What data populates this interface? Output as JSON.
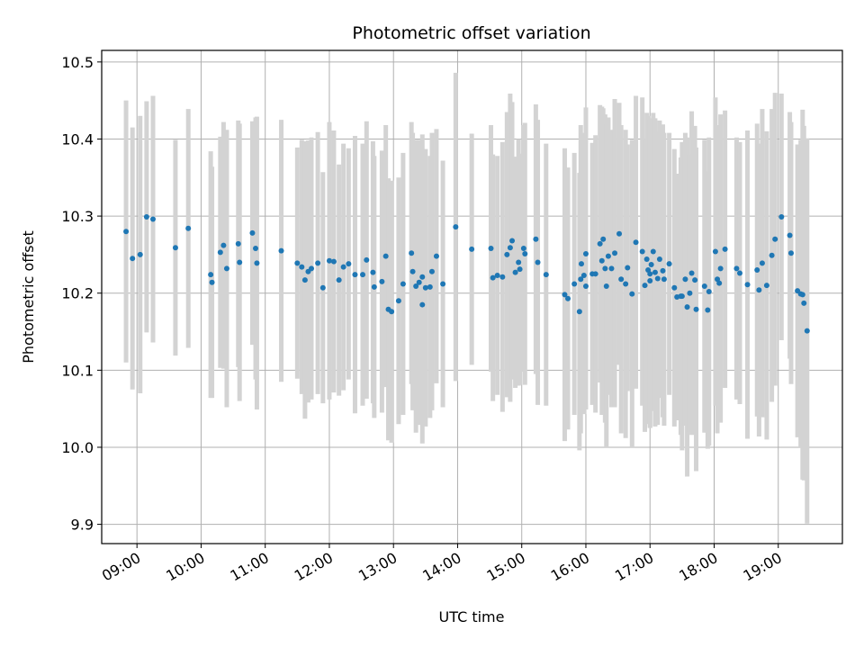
{
  "chart_data": {
    "type": "scatter",
    "title": "Photometric offset variation",
    "xlabel": "UTC time",
    "ylabel": "Photometric offset",
    "x_unit": "UTC hour of day (decimal)",
    "xlim": [
      8.45,
      20.0
    ],
    "ylim": [
      9.875,
      10.515
    ],
    "x_ticks": [
      9,
      10,
      11,
      12,
      13,
      14,
      15,
      16,
      17,
      18,
      19
    ],
    "x_tick_labels": [
      "09:00",
      "10:00",
      "11:00",
      "12:00",
      "13:00",
      "14:00",
      "15:00",
      "16:00",
      "17:00",
      "18:00",
      "19:00"
    ],
    "y_ticks": [
      9.9,
      10.0,
      10.1,
      10.2,
      10.3,
      10.4,
      10.5
    ],
    "y_tick_labels": [
      "9.9",
      "10.0",
      "10.1",
      "10.2",
      "10.3",
      "10.4",
      "10.5"
    ],
    "grid": true,
    "colors": {
      "points": "#1f77b4",
      "error_bars": "#d3d3d3",
      "grid": "#b0b0b0"
    },
    "points": [
      [
        8.83,
        10.28,
        0.17
      ],
      [
        8.93,
        10.245,
        0.17
      ],
      [
        9.05,
        10.25,
        0.18
      ],
      [
        9.15,
        10.299,
        0.15
      ],
      [
        9.25,
        10.296,
        0.16
      ],
      [
        9.6,
        10.259,
        0.14
      ],
      [
        9.8,
        10.284,
        0.155
      ],
      [
        10.15,
        10.224,
        0.16
      ],
      [
        10.17,
        10.214,
        0.15
      ],
      [
        10.3,
        10.253,
        0.15
      ],
      [
        10.35,
        10.262,
        0.16
      ],
      [
        10.4,
        10.232,
        0.18
      ],
      [
        10.58,
        10.264,
        0.16
      ],
      [
        10.6,
        10.24,
        0.18
      ],
      [
        10.8,
        10.278,
        0.145
      ],
      [
        10.85,
        10.258,
        0.17
      ],
      [
        10.87,
        10.239,
        0.19
      ],
      [
        11.25,
        10.255,
        0.17
      ],
      [
        11.5,
        10.239,
        0.15
      ],
      [
        11.57,
        10.234,
        0.165
      ],
      [
        11.62,
        10.217,
        0.18
      ],
      [
        11.67,
        10.228,
        0.17
      ],
      [
        11.72,
        10.232,
        0.17
      ],
      [
        11.82,
        10.239,
        0.17
      ],
      [
        11.9,
        10.207,
        0.15
      ],
      [
        12.0,
        10.242,
        0.18
      ],
      [
        12.07,
        10.241,
        0.17
      ],
      [
        12.15,
        10.217,
        0.15
      ],
      [
        12.22,
        10.234,
        0.16
      ],
      [
        12.3,
        10.238,
        0.15
      ],
      [
        12.4,
        10.224,
        0.18
      ],
      [
        12.52,
        10.224,
        0.17
      ],
      [
        12.58,
        10.243,
        0.18
      ],
      [
        12.68,
        10.227,
        0.17
      ],
      [
        12.7,
        10.208,
        0.17
      ],
      [
        12.82,
        10.215,
        0.17
      ],
      [
        12.88,
        10.248,
        0.17
      ],
      [
        12.92,
        10.179,
        0.17
      ],
      [
        12.97,
        10.176,
        0.17
      ],
      [
        13.08,
        10.19,
        0.16
      ],
      [
        13.15,
        10.212,
        0.17
      ],
      [
        13.28,
        10.252,
        0.17
      ],
      [
        13.3,
        10.228,
        0.18
      ],
      [
        13.35,
        10.209,
        0.19
      ],
      [
        13.4,
        10.214,
        0.185
      ],
      [
        13.45,
        10.185,
        0.18
      ],
      [
        13.45,
        10.221,
        0.185
      ],
      [
        13.5,
        10.207,
        0.18
      ],
      [
        13.57,
        10.208,
        0.17
      ],
      [
        13.6,
        10.228,
        0.18
      ],
      [
        13.67,
        10.248,
        0.165
      ],
      [
        13.77,
        10.212,
        0.16
      ],
      [
        13.97,
        10.286,
        0.2
      ],
      [
        14.22,
        10.257,
        0.15
      ],
      [
        14.52,
        10.258,
        0.16
      ],
      [
        14.55,
        10.22,
        0.16
      ],
      [
        14.62,
        10.223,
        0.155
      ],
      [
        14.7,
        10.221,
        0.175
      ],
      [
        14.77,
        10.25,
        0.185
      ],
      [
        14.82,
        10.259,
        0.2
      ],
      [
        14.85,
        10.268,
        0.18
      ],
      [
        14.9,
        10.227,
        0.15
      ],
      [
        14.95,
        10.24,
        0.16
      ],
      [
        14.97,
        10.231,
        0.15
      ],
      [
        15.03,
        10.258,
        0.16
      ],
      [
        15.05,
        10.251,
        0.17
      ],
      [
        15.22,
        10.27,
        0.175
      ],
      [
        15.25,
        10.24,
        0.185
      ],
      [
        15.38,
        10.224,
        0.17
      ],
      [
        15.67,
        10.198,
        0.19
      ],
      [
        15.72,
        10.193,
        0.17
      ],
      [
        15.82,
        10.212,
        0.17
      ],
      [
        15.9,
        10.176,
        0.18
      ],
      [
        15.92,
        10.218,
        0.2
      ],
      [
        15.93,
        10.238,
        0.17
      ],
      [
        15.97,
        10.223,
        0.18
      ],
      [
        16.0,
        10.251,
        0.19
      ],
      [
        16.0,
        10.209,
        0.16
      ],
      [
        16.1,
        10.225,
        0.17
      ],
      [
        16.15,
        10.225,
        0.18
      ],
      [
        16.22,
        10.264,
        0.18
      ],
      [
        16.25,
        10.242,
        0.2
      ],
      [
        16.27,
        10.27,
        0.17
      ],
      [
        16.3,
        10.232,
        0.2
      ],
      [
        16.32,
        10.209,
        0.21
      ],
      [
        16.35,
        10.248,
        0.18
      ],
      [
        16.4,
        10.232,
        0.18
      ],
      [
        16.45,
        10.252,
        0.2
      ],
      [
        16.52,
        10.277,
        0.17
      ],
      [
        16.55,
        10.218,
        0.2
      ],
      [
        16.62,
        10.212,
        0.2
      ],
      [
        16.65,
        10.233,
        0.16
      ],
      [
        16.72,
        10.199,
        0.2
      ],
      [
        16.78,
        10.266,
        0.19
      ],
      [
        16.88,
        10.254,
        0.2
      ],
      [
        16.92,
        10.21,
        0.19
      ],
      [
        16.95,
        10.244,
        0.19
      ],
      [
        16.97,
        10.23,
        0.2
      ],
      [
        17.0,
        10.225,
        0.2
      ],
      [
        17.0,
        10.216,
        0.19
      ],
      [
        17.02,
        10.237,
        0.19
      ],
      [
        17.05,
        10.254,
        0.18
      ],
      [
        17.08,
        10.227,
        0.2
      ],
      [
        17.12,
        10.219,
        0.19
      ],
      [
        17.15,
        10.244,
        0.18
      ],
      [
        17.2,
        10.229,
        0.19
      ],
      [
        17.22,
        10.218,
        0.19
      ],
      [
        17.3,
        10.238,
        0.17
      ],
      [
        17.38,
        10.207,
        0.18
      ],
      [
        17.42,
        10.195,
        0.16
      ],
      [
        17.48,
        10.196,
        0.18
      ],
      [
        17.5,
        10.196,
        0.2
      ],
      [
        17.55,
        10.218,
        0.19
      ],
      [
        17.58,
        10.182,
        0.22
      ],
      [
        17.62,
        10.2,
        0.18
      ],
      [
        17.65,
        10.226,
        0.21
      ],
      [
        17.7,
        10.217,
        0.2
      ],
      [
        17.72,
        10.179,
        0.21
      ],
      [
        17.85,
        10.209,
        0.19
      ],
      [
        17.9,
        10.178,
        0.18
      ],
      [
        17.92,
        10.202,
        0.2
      ],
      [
        18.02,
        10.254,
        0.2
      ],
      [
        18.05,
        10.218,
        0.2
      ],
      [
        18.08,
        10.213,
        0.18
      ],
      [
        18.1,
        10.232,
        0.2
      ],
      [
        18.17,
        10.257,
        0.18
      ],
      [
        18.35,
        10.232,
        0.17
      ],
      [
        18.4,
        10.226,
        0.17
      ],
      [
        18.52,
        10.211,
        0.2
      ],
      [
        18.67,
        10.23,
        0.19
      ],
      [
        18.7,
        10.204,
        0.19
      ],
      [
        18.75,
        10.239,
        0.2
      ],
      [
        18.82,
        10.21,
        0.2
      ],
      [
        18.9,
        10.249,
        0.19
      ],
      [
        18.95,
        10.27,
        0.19
      ],
      [
        19.05,
        10.299,
        0.16
      ],
      [
        19.18,
        10.275,
        0.16
      ],
      [
        19.2,
        10.252,
        0.17
      ],
      [
        19.3,
        10.203,
        0.19
      ],
      [
        19.35,
        10.199,
        0.2
      ],
      [
        19.38,
        10.198,
        0.24
      ],
      [
        19.4,
        10.187,
        0.23
      ],
      [
        19.45,
        10.151,
        0.25
      ]
    ]
  }
}
